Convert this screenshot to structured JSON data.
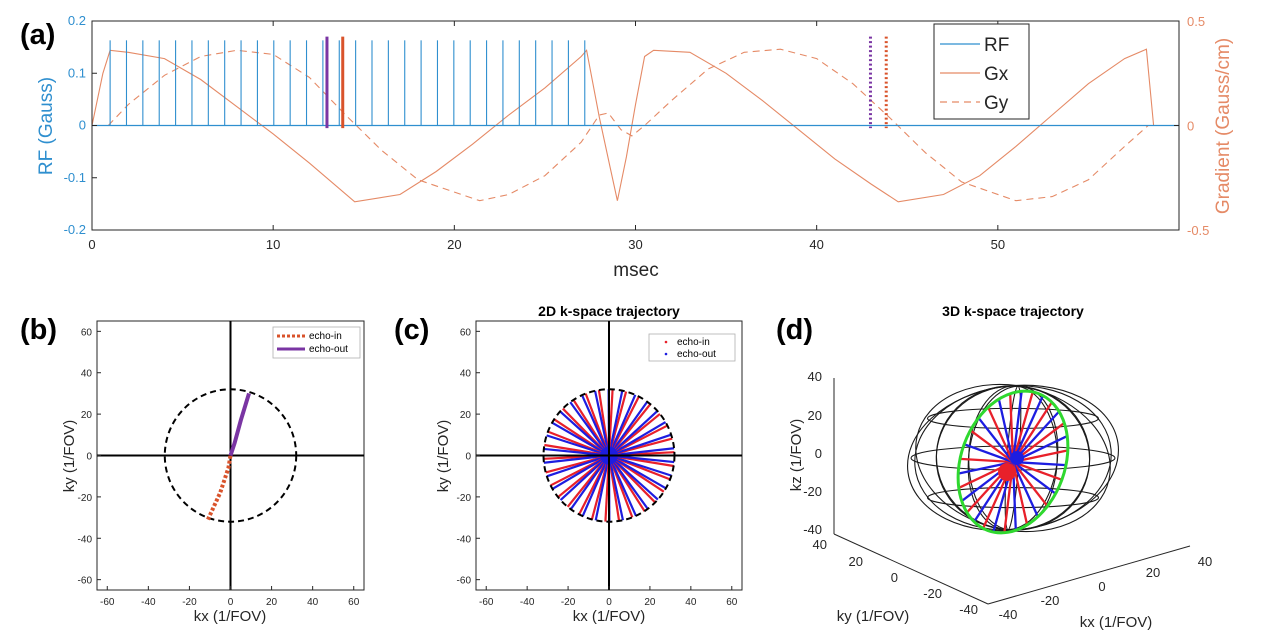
{
  "colors": {
    "rf": "#2f8fcf",
    "gradient": "#e58a66",
    "echo_in": "#d9532b",
    "echo_out": "#7a35a3",
    "red": "#e8202a",
    "blue": "#1d1de0",
    "green": "#2fd82f",
    "axis": "#262626"
  },
  "panel_labels": [
    "(a)",
    "(b)",
    "(c)",
    "(d)"
  ],
  "chart_data": [
    {
      "id": "a",
      "type": "line",
      "title": "",
      "xlabel": "msec",
      "ylabel_left": "RF (Gauss)",
      "ylabel_right": "Gradient (Gauss/cm)",
      "xlim": [
        0,
        60
      ],
      "ylim_left": [
        -0.2,
        0.2
      ],
      "ylim_right": [
        -0.5,
        0.5
      ],
      "xticks": [
        "0",
        "10",
        "20",
        "30",
        "40",
        "50"
      ],
      "yticks_left": [
        "0.2",
        "0.1",
        "0",
        "-0.1",
        "-0.2"
      ],
      "yticks_right": [
        "0.5",
        "0",
        "-0.5"
      ],
      "legend": [
        "RF",
        "Gx",
        "Gy"
      ],
      "legend_position": "top-right",
      "rf_pulse_amplitude": 0.163,
      "rf_pulses_start_ms": 1.0,
      "rf_pulses_end_ms": 27.2,
      "rf_pulse_count": 30,
      "markers": [
        {
          "name": "echo-out-center",
          "x": 12.97,
          "style": "solid",
          "color": "echo_out"
        },
        {
          "name": "echo-in-center",
          "x": 13.84,
          "style": "solid",
          "color": "echo_in"
        },
        {
          "name": "echo-out-dotted",
          "x": 42.97,
          "style": "dotted",
          "color": "echo_out"
        },
        {
          "name": "echo-in-dotted",
          "x": 43.84,
          "style": "dotted",
          "color": "echo_in"
        }
      ],
      "marker_top": 0.17,
      "marker_bottom": -0.005,
      "gradient_amplitude": 0.365,
      "gx_segments": [
        {
          "t": [
            0,
            0.6,
            1.0,
            2.0,
            4.0,
            6.0,
            8.0,
            10.0,
            12.0,
            14.5,
            17.0,
            19.0,
            21.0,
            23.0,
            25.0,
            27.0,
            27.3,
            28.0,
            28.6,
            29.0,
            29.5,
            30.0,
            30.5,
            31.0,
            33.0,
            35.0,
            37.0,
            39.0,
            41.0,
            43.0,
            44.5,
            47.0,
            49.0,
            51.0,
            53.0,
            55.0,
            57.0,
            58.2,
            58.6
          ],
          "g": [
            0,
            0.25,
            0.36,
            0.35,
            0.32,
            0.22,
            0.09,
            -0.04,
            -0.18,
            -0.365,
            -0.33,
            -0.22,
            -0.09,
            0.05,
            0.18,
            0.33,
            0.36,
            0.04,
            -0.2,
            -0.36,
            -0.15,
            0.1,
            0.33,
            0.36,
            0.35,
            0.25,
            0.12,
            -0.02,
            -0.16,
            -0.28,
            -0.365,
            -0.33,
            -0.24,
            -0.1,
            0.05,
            0.2,
            0.32,
            0.365,
            0
          ]
        }
      ],
      "gy_segments": [
        {
          "t": [
            0.9,
            2.0,
            4.0,
            6.0,
            8.0,
            10.0,
            12.0,
            14.0,
            16.0,
            18.0,
            21.4,
            23.0,
            25.0,
            27.0,
            28.0,
            28.5,
            29.2,
            29.8,
            30.5,
            32.0,
            34.0,
            36.0,
            38.0,
            40.0,
            42.0,
            44.0,
            46.0,
            48.0,
            51.0,
            53.0,
            55.0,
            57.0,
            58.3,
            59.0
          ],
          "g": [
            0,
            0.1,
            0.24,
            0.33,
            0.36,
            0.34,
            0.23,
            0.05,
            -0.12,
            -0.26,
            -0.36,
            -0.33,
            -0.24,
            -0.08,
            0.05,
            0.06,
            -0.02,
            -0.05,
            0.0,
            0.12,
            0.27,
            0.35,
            0.365,
            0.32,
            0.2,
            0.04,
            -0.13,
            -0.27,
            -0.36,
            -0.34,
            -0.26,
            -0.1,
            0.0,
            0.0
          ]
        }
      ]
    },
    {
      "id": "b",
      "type": "line",
      "title": "",
      "xlabel": "kx (1/FOV)",
      "ylabel": "ky (1/FOV)",
      "xlim": [
        -65,
        65
      ],
      "ylim": [
        -65,
        65
      ],
      "xticks": [
        "-60",
        "-40",
        "-20",
        "0",
        "20",
        "40",
        "60"
      ],
      "yticks": [
        "60",
        "40",
        "20",
        "0",
        "-20",
        "-40",
        "-60"
      ],
      "legend": [
        "echo-in",
        "echo-out"
      ],
      "legend_position": "top-right",
      "circle_radius": 32,
      "echo_in": {
        "x": [
          -11,
          -5,
          -1,
          0
        ],
        "y": [
          -31,
          -18,
          -6,
          0
        ]
      },
      "echo_out": {
        "x": [
          0,
          2,
          5,
          9
        ],
        "y": [
          0,
          6,
          17,
          30
        ]
      }
    },
    {
      "id": "c",
      "type": "line",
      "title": "2D k-space trajectory",
      "xlabel": "kx (1/FOV)",
      "ylabel": "ky (1/FOV)",
      "xlim": [
        -65,
        65
      ],
      "ylim": [
        -65,
        65
      ],
      "xticks": [
        "-60",
        "-40",
        "-20",
        "0",
        "20",
        "40",
        "60"
      ],
      "yticks": [
        "60",
        "40",
        "20",
        "0",
        "-20",
        "-40",
        "-60"
      ],
      "legend": [
        "echo-in",
        "echo-out"
      ],
      "legend_position": "top-right",
      "circle_radius": 32,
      "spoke_count": 30
    },
    {
      "id": "d",
      "type": "line",
      "title": "3D k-space trajectory",
      "xlabel": "kx (1/FOV)",
      "ylabel": "ky (1/FOV)",
      "zlabel": "kz (1/FOV)",
      "zticks": [
        "40",
        "20",
        "0",
        "-20",
        "-40"
      ],
      "ky_ticks": [
        "40",
        "20",
        "0",
        "-20",
        "-40"
      ],
      "kx_ticks": [
        "-40",
        "-20",
        "0",
        "20",
        "40"
      ],
      "sphere_radius": 32,
      "meridian_count": 8,
      "highlight_spoke_count": 30
    }
  ]
}
